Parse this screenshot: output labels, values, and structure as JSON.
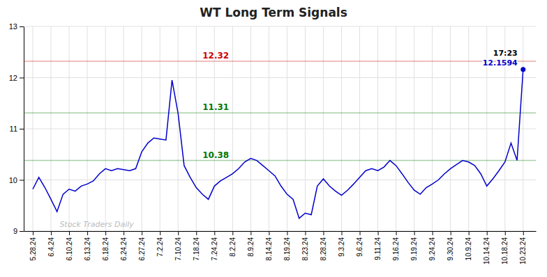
{
  "chart_data": {
    "type": "line",
    "title": "WT Long Term Signals",
    "series": [
      {
        "color": "#0000cc",
        "values": [
          9.82,
          10.05,
          9.85,
          9.62,
          9.38,
          9.72,
          9.82,
          9.78,
          9.88,
          9.92,
          9.98,
          10.12,
          10.22,
          10.18,
          10.22,
          10.2,
          10.18,
          10.22,
          10.55,
          10.72,
          10.82,
          10.8,
          10.78,
          11.95,
          11.3,
          10.28,
          10.05,
          9.85,
          9.72,
          9.62,
          9.88,
          9.98,
          10.05,
          10.12,
          10.22,
          10.35,
          10.42,
          10.38,
          10.28,
          10.18,
          10.08,
          9.88,
          9.72,
          9.62,
          9.25,
          9.35,
          9.32,
          9.88,
          10.02,
          9.88,
          9.78,
          9.7,
          9.8,
          9.92,
          10.05,
          10.18,
          10.22,
          10.18,
          10.25,
          10.38,
          10.28,
          10.12,
          9.95,
          9.8,
          9.72,
          9.85,
          9.92,
          10.0,
          10.12,
          10.22,
          10.3,
          10.38,
          10.35,
          10.28,
          10.12,
          9.88,
          10.02,
          10.18,
          10.35,
          10.72,
          10.38,
          12.1594
        ]
      }
    ],
    "xlim": [
      -0.5,
      27.7
    ],
    "xticks": [
      {
        "value": 0,
        "label": "5.28.24"
      },
      {
        "value": 1,
        "label": "6.4.24"
      },
      {
        "value": 2,
        "label": "6.10.24"
      },
      {
        "value": 3,
        "label": "6.13.24"
      },
      {
        "value": 4,
        "label": "6.18.24"
      },
      {
        "value": 5,
        "label": "6.24.24"
      },
      {
        "value": 6,
        "label": "6.27.24"
      },
      {
        "value": 7,
        "label": "7.2.24"
      },
      {
        "value": 8,
        "label": "7.10.24"
      },
      {
        "value": 9,
        "label": "7.18.24"
      },
      {
        "value": 10,
        "label": "7.24.24"
      },
      {
        "value": 11,
        "label": "8.2.24"
      },
      {
        "value": 12,
        "label": "8.9.24"
      },
      {
        "value": 13,
        "label": "8.14.24"
      },
      {
        "value": 14,
        "label": "8.19.24"
      },
      {
        "value": 15,
        "label": "8.23.24"
      },
      {
        "value": 16,
        "label": "8.28.24"
      },
      {
        "value": 17,
        "label": "9.3.24"
      },
      {
        "value": 18,
        "label": "9.6.24"
      },
      {
        "value": 19,
        "label": "9.11.24"
      },
      {
        "value": 20,
        "label": "9.16.24"
      },
      {
        "value": 21,
        "label": "9.19.24"
      },
      {
        "value": 22,
        "label": "9.24.24"
      },
      {
        "value": 23,
        "label": "9.30.24"
      },
      {
        "value": 24,
        "label": "10.9.24"
      },
      {
        "value": 25,
        "label": "10.14.24"
      },
      {
        "value": 26,
        "label": "10.18.24"
      },
      {
        "value": 27,
        "label": "10.23.24"
      }
    ],
    "ylim": [
      9,
      13
    ],
    "yticks": [
      9,
      10,
      11,
      12,
      13
    ],
    "grid": true,
    "reference_lines": [
      {
        "value": 12.32,
        "label": "12.32",
        "color": "#cc0000"
      },
      {
        "value": 11.31,
        "label": "11.31",
        "color": "#007700"
      },
      {
        "value": 10.38,
        "label": "10.38",
        "color": "#007700"
      }
    ],
    "annotations": [
      {
        "text": "17:23"
      },
      {
        "text": "12.1594",
        "color": "#0000cc"
      }
    ],
    "watermark": "Stock Traders Daily"
  }
}
